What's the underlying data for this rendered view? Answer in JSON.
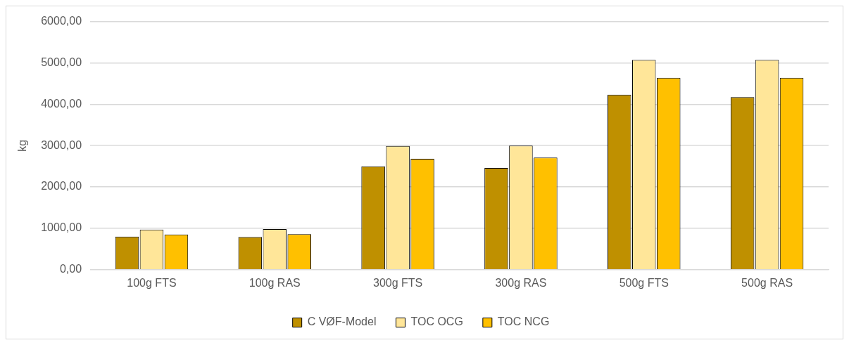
{
  "chart_data": {
    "type": "bar",
    "ylabel": "kg",
    "categories": [
      "100g FTS",
      "100g RAS",
      "300g FTS",
      "300g RAS",
      "500g FTS",
      "500g RAS"
    ],
    "series": [
      {
        "name": "C VØF-Model",
        "color": "#bf9000",
        "values": [
          800,
          790,
          2500,
          2460,
          4230,
          4170
        ]
      },
      {
        "name": "TOC OCG",
        "color": "#ffe699",
        "values": [
          970,
          980,
          2990,
          3000,
          5070,
          5070
        ]
      },
      {
        "name": "TOC NCG",
        "color": "#ffc000",
        "values": [
          850,
          860,
          2680,
          2710,
          4640,
          4640
        ]
      }
    ],
    "ylim": [
      0,
      6000
    ],
    "yticks": [
      {
        "value": 0,
        "label": "0,00"
      },
      {
        "value": 1000,
        "label": "1000,00"
      },
      {
        "value": 2000,
        "label": "2000,00"
      },
      {
        "value": 3000,
        "label": "3000,00"
      },
      {
        "value": 4000,
        "label": "4000,00"
      },
      {
        "value": 5000,
        "label": "5000,00"
      },
      {
        "value": 6000,
        "label": "6000,00"
      }
    ],
    "grid": "y",
    "legend": "bottom"
  }
}
